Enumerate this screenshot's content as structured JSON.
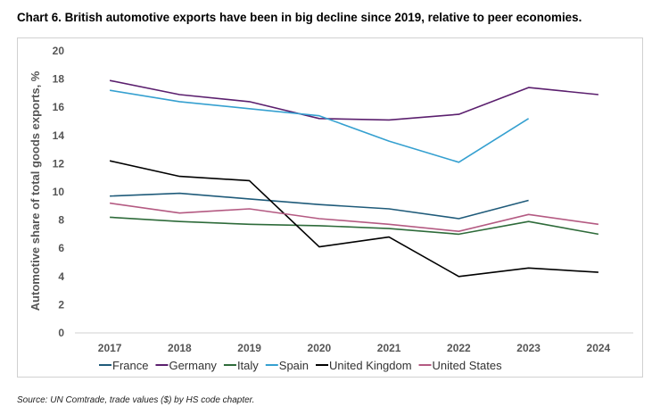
{
  "title": "Chart 6. British automotive exports have been in big decline since 2019, relative to peer economies.",
  "source": "Source: UN Comtrade, trade values ($) by HS code chapter.",
  "chart_data": {
    "type": "line",
    "title": "Chart 6. British automotive exports have been in big decline since 2019, relative to peer economies.",
    "xlabel": "",
    "ylabel": "Automotive share of total goods exports, %",
    "x": [
      "2017",
      "2018",
      "2019",
      "2020",
      "2021",
      "2022",
      "2023",
      "2024"
    ],
    "ylim": [
      0,
      20
    ],
    "yticks": [
      "0",
      "2",
      "4",
      "6",
      "8",
      "10",
      "12",
      "14",
      "16",
      "18",
      "20"
    ],
    "grid": false,
    "legend_position": "bottom",
    "series": [
      {
        "name": "France",
        "color": "#1f5b7a",
        "values": [
          9.7,
          9.9,
          9.5,
          9.1,
          8.8,
          8.1,
          9.4,
          null
        ]
      },
      {
        "name": "Germany",
        "color": "#5b1f6e",
        "values": [
          17.9,
          16.9,
          16.4,
          15.2,
          15.1,
          15.5,
          17.4,
          16.9
        ]
      },
      {
        "name": "Italy",
        "color": "#2e6b3a",
        "values": [
          8.2,
          7.9,
          7.7,
          7.6,
          7.4,
          7.0,
          7.9,
          7.0
        ]
      },
      {
        "name": "Spain",
        "color": "#35a0d0",
        "values": [
          17.2,
          16.4,
          15.9,
          15.4,
          13.6,
          12.1,
          15.2,
          null
        ]
      },
      {
        "name": "United Kingdom",
        "color": "#000000",
        "values": [
          12.2,
          11.1,
          10.8,
          6.1,
          6.8,
          4.0,
          4.6,
          4.3
        ]
      },
      {
        "name": "United States",
        "color": "#b45a82",
        "values": [
          9.2,
          8.5,
          8.8,
          8.1,
          7.7,
          7.2,
          8.4,
          7.7
        ]
      }
    ]
  }
}
